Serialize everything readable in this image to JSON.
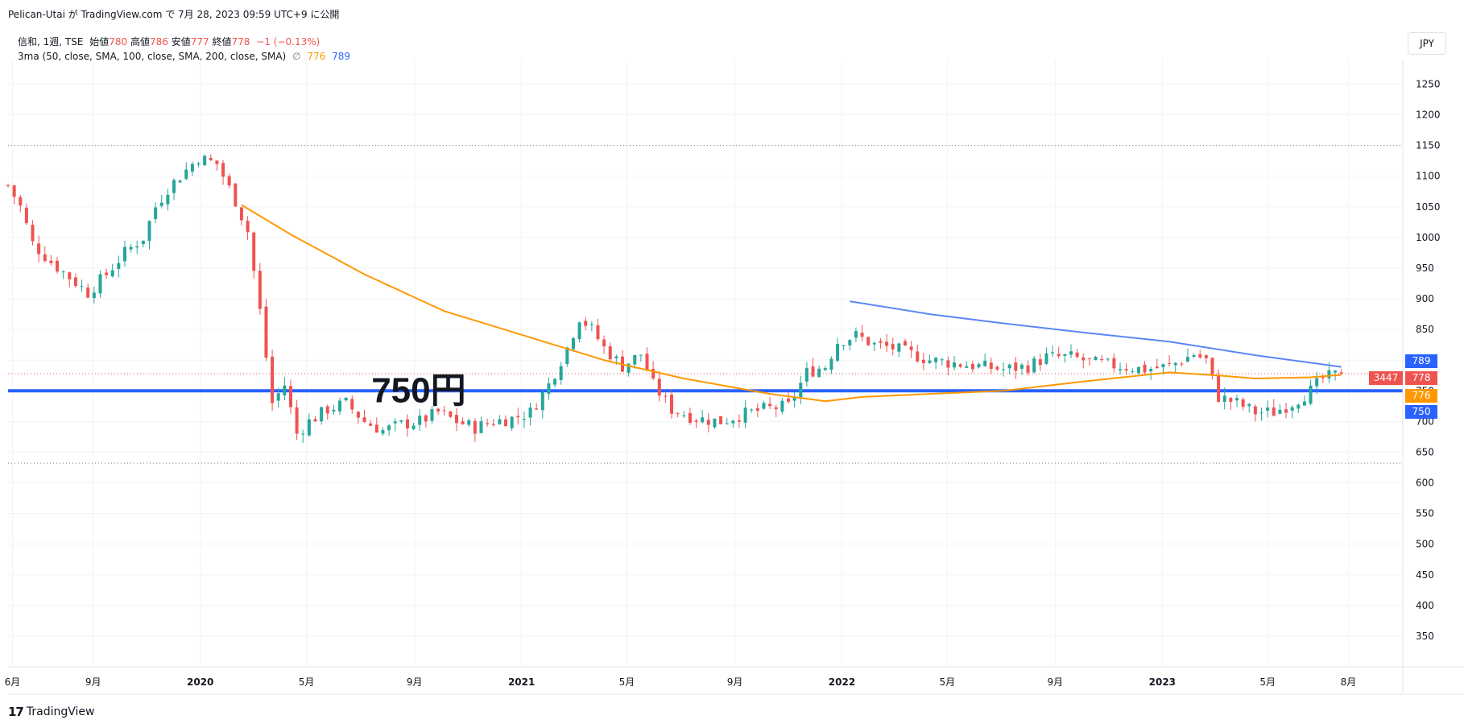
{
  "header": {
    "text": "Pelican-Utai が TradingView.com で 7月 28, 2023 09:59 UTC+9 に公開"
  },
  "legend": {
    "symbol": "信和, 1週, TSE",
    "open_label": "始値",
    "open": "780",
    "high_label": "高値",
    "high": "786",
    "low_label": "安値",
    "low": "777",
    "close_label": "終値",
    "close": "778",
    "change": "−1 (−0.13%)",
    "indicator": "3ma (50, close, SMA, 100, close, SMA, 200, close, SMA)",
    "indicator_symbol": "∅",
    "ma_values": [
      "776",
      "789"
    ]
  },
  "currency": "JPY",
  "footer": {
    "logo": "17",
    "brand": "TradingView"
  },
  "colors": {
    "up": "#26a69a",
    "down": "#ef5350",
    "ma100": "#ff9800",
    "ma200": "#5b87f5",
    "support": "#2962ff"
  },
  "chart_data": {
    "type": "candlestick",
    "ylim": [
      300,
      1290
    ],
    "y_ticks": [
      350,
      400,
      450,
      500,
      550,
      600,
      650,
      700,
      750,
      800,
      850,
      900,
      950,
      1000,
      1050,
      1100,
      1150,
      1200,
      1250
    ],
    "x_ticks": [
      {
        "label": "6月",
        "date": "2019-06-01"
      },
      {
        "label": "9月",
        "date": "2019-09-01"
      },
      {
        "label": "2020",
        "date": "2020-01-01",
        "bold": true
      },
      {
        "label": "5月",
        "date": "2020-05-01"
      },
      {
        "label": "9月",
        "date": "2020-09-01"
      },
      {
        "label": "2021",
        "date": "2021-01-01",
        "bold": true
      },
      {
        "label": "5月",
        "date": "2021-05-01"
      },
      {
        "label": "9月",
        "date": "2021-09-01"
      },
      {
        "label": "2022",
        "date": "2022-01-01",
        "bold": true
      },
      {
        "label": "5月",
        "date": "2022-05-01"
      },
      {
        "label": "9月",
        "date": "2022-09-01"
      },
      {
        "label": "2023",
        "date": "2023-01-01",
        "bold": true
      },
      {
        "label": "5月",
        "date": "2023-05-01"
      },
      {
        "label": "8月",
        "date": "2023-08-01"
      }
    ],
    "price_anchors": [
      [
        "2019-05-27",
        1085
      ],
      [
        "2019-06-10",
        1050
      ],
      [
        "2019-06-24",
        990
      ],
      [
        "2019-07-15",
        960
      ],
      [
        "2019-08-05",
        935
      ],
      [
        "2019-08-26",
        910
      ],
      [
        "2019-09-16",
        940
      ],
      [
        "2019-10-07",
        975
      ],
      [
        "2019-10-28",
        1000
      ],
      [
        "2019-11-11",
        1050
      ],
      [
        "2019-11-25",
        1080
      ],
      [
        "2019-12-16",
        1110
      ],
      [
        "2019-12-30",
        1130
      ],
      [
        "2020-01-20",
        1120
      ],
      [
        "2020-02-10",
        1060
      ],
      [
        "2020-02-24",
        1010
      ],
      [
        "2020-03-09",
        880
      ],
      [
        "2020-03-23",
        730
      ],
      [
        "2020-04-06",
        760
      ],
      [
        "2020-04-20",
        680
      ],
      [
        "2020-05-04",
        700
      ],
      [
        "2020-05-25",
        720
      ],
      [
        "2020-06-15",
        730
      ],
      [
        "2020-07-06",
        700
      ],
      [
        "2020-07-27",
        685
      ],
      [
        "2020-08-17",
        695
      ],
      [
        "2020-09-07",
        700
      ],
      [
        "2020-09-28",
        715
      ],
      [
        "2020-10-19",
        700
      ],
      [
        "2020-11-09",
        690
      ],
      [
        "2020-11-30",
        700
      ],
      [
        "2020-12-21",
        705
      ],
      [
        "2021-01-11",
        715
      ],
      [
        "2021-02-01",
        760
      ],
      [
        "2021-02-22",
        820
      ],
      [
        "2021-03-08",
        870
      ],
      [
        "2021-03-22",
        850
      ],
      [
        "2021-04-05",
        820
      ],
      [
        "2021-04-26",
        790
      ],
      [
        "2021-05-17",
        810
      ],
      [
        "2021-05-31",
        760
      ],
      [
        "2021-06-21",
        720
      ],
      [
        "2021-07-19",
        705
      ],
      [
        "2021-08-16",
        700
      ],
      [
        "2021-09-06",
        710
      ],
      [
        "2021-10-04",
        720
      ],
      [
        "2021-11-01",
        725
      ],
      [
        "2021-11-22",
        780
      ],
      [
        "2021-12-13",
        790
      ],
      [
        "2021-12-27",
        830
      ],
      [
        "2022-01-17",
        840
      ],
      [
        "2022-02-07",
        825
      ],
      [
        "2022-02-28",
        820
      ],
      [
        "2022-03-21",
        810
      ],
      [
        "2022-04-11",
        800
      ],
      [
        "2022-05-09",
        795
      ],
      [
        "2022-06-06",
        790
      ],
      [
        "2022-07-04",
        785
      ],
      [
        "2022-08-01",
        790
      ],
      [
        "2022-08-22",
        805
      ],
      [
        "2022-09-19",
        805
      ],
      [
        "2022-10-17",
        795
      ],
      [
        "2022-11-14",
        790
      ],
      [
        "2022-12-12",
        785
      ],
      [
        "2023-01-09",
        790
      ],
      [
        "2023-02-06",
        810
      ],
      [
        "2023-02-20",
        800
      ],
      [
        "2023-03-06",
        740
      ],
      [
        "2023-03-27",
        730
      ],
      [
        "2023-04-17",
        715
      ],
      [
        "2023-05-08",
        715
      ],
      [
        "2023-05-29",
        730
      ],
      [
        "2023-06-19",
        750
      ],
      [
        "2023-07-03",
        770
      ],
      [
        "2023-07-24",
        778
      ]
    ],
    "last_candle": {
      "open": 780,
      "high": 786,
      "low": 777,
      "close": 778
    },
    "ma100_points": [
      [
        "2020-02-17",
        1053
      ],
      [
        "2020-04-13",
        1005
      ],
      [
        "2020-07-06",
        940
      ],
      [
        "2020-10-05",
        880
      ],
      [
        "2021-01-04",
        840
      ],
      [
        "2021-04-05",
        800
      ],
      [
        "2021-07-05",
        770
      ],
      [
        "2021-10-11",
        745
      ],
      [
        "2021-12-13",
        733
      ],
      [
        "2022-01-24",
        740
      ],
      [
        "2022-04-11",
        745
      ],
      [
        "2022-07-04",
        750
      ],
      [
        "2022-10-03",
        765
      ],
      [
        "2023-01-09",
        780
      ],
      [
        "2023-03-06",
        775
      ],
      [
        "2023-04-17",
        770
      ],
      [
        "2023-06-19",
        772
      ],
      [
        "2023-07-24",
        776
      ]
    ],
    "ma200_points": [
      [
        "2022-01-10",
        896
      ],
      [
        "2022-04-11",
        875
      ],
      [
        "2022-07-04",
        860
      ],
      [
        "2022-10-03",
        845
      ],
      [
        "2023-01-09",
        830
      ],
      [
        "2023-04-17",
        808
      ],
      [
        "2023-07-24",
        789
      ]
    ],
    "hlines": [
      {
        "price": 750,
        "style": "solid",
        "color": "#2962ff"
      },
      {
        "price": 1150,
        "style": "dotted",
        "color": "#787b86"
      },
      {
        "price": 632,
        "style": "dotted",
        "color": "#787b86"
      },
      {
        "price": 778,
        "style": "dotted",
        "color": "#ef5350"
      }
    ],
    "annotation": {
      "text": "750円",
      "price": 750,
      "date": "2020-09-07"
    },
    "axis_badges": [
      {
        "text": "789",
        "price": 789,
        "color": "#2962ff"
      },
      {
        "text": "778",
        "price": 778,
        "color": "#ef5350"
      },
      {
        "text": "776",
        "price": 776,
        "color": "#ff9800"
      },
      {
        "text": "750",
        "price": 750,
        "color": "#2962ff"
      }
    ],
    "volume_badge": {
      "text": "3447",
      "price": 778,
      "color": "#ef5350"
    }
  }
}
